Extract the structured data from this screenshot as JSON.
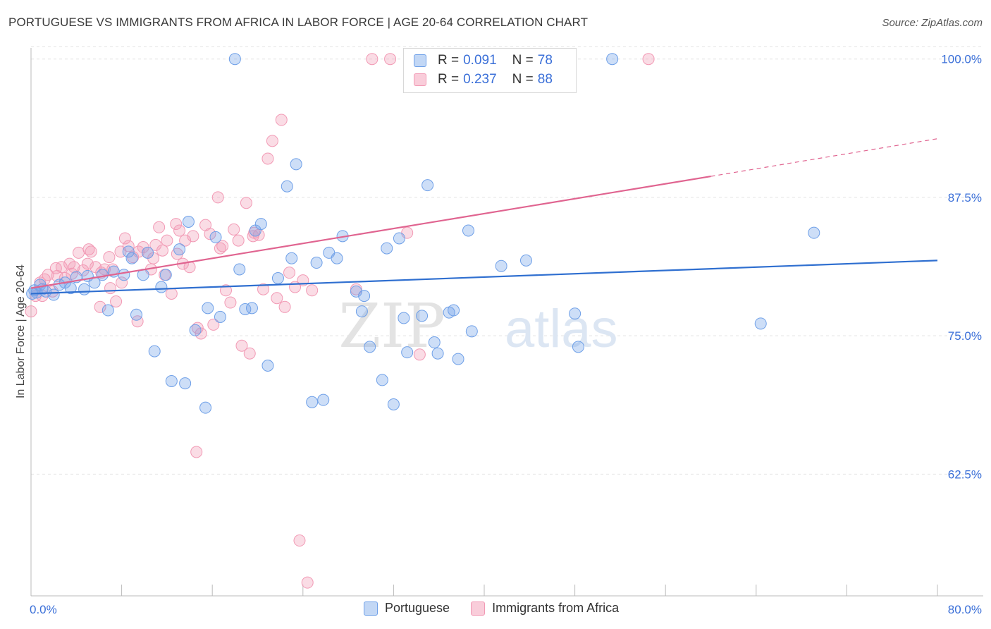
{
  "title": "PORTUGUESE VS IMMIGRANTS FROM AFRICA IN LABOR FORCE | AGE 20-64 CORRELATION CHART",
  "source": "Source: ZipAtlas.com",
  "watermark": {
    "zip": "ZIP",
    "atlas": "atlas"
  },
  "legend": {
    "rows": [
      {
        "r_label": "R =",
        "r_value": "0.091",
        "n_label": "N =",
        "n_value": "78"
      },
      {
        "r_label": "R =",
        "r_value": "0.237",
        "n_label": "N =",
        "n_value": "88"
      }
    ]
  },
  "chart_data": {
    "type": "scatter",
    "title": "PORTUGUESE VS IMMIGRANTS FROM AFRICA IN LABOR FORCE | AGE 20-64 CORRELATION CHART",
    "xlabel": "",
    "ylabel": "In Labor Force | Age 20-64",
    "xlim": [
      0,
      80
    ],
    "ylim": [
      51.5,
      101
    ],
    "x_tick_labels": [
      "0.0%",
      "80.0%"
    ],
    "y_ticks": [
      62.5,
      75.0,
      87.5,
      100.0
    ],
    "y_tick_labels": [
      "62.5%",
      "75.0%",
      "87.5%",
      "100.0%"
    ],
    "grid": true,
    "legend_position": "top-center",
    "colors": {
      "portuguese": "#6fa0e8",
      "portuguese_line": "#2f6fd0",
      "africa": "#f29ab5",
      "africa_line": "#e06490",
      "tick_label": "#3a6fd8"
    },
    "series": [
      {
        "name": "Portuguese",
        "r": 0.091,
        "n": 78,
        "trend": {
          "x": [
            0,
            80
          ],
          "y": [
            78.8,
            81.8
          ]
        },
        "points": [
          [
            0.3,
            79.1
          ],
          [
            0.5,
            78.9
          ],
          [
            0.8,
            79.6
          ],
          [
            1.0,
            79.2
          ],
          [
            1.3,
            79.0
          ],
          [
            2.0,
            78.7
          ],
          [
            2.5,
            79.6
          ],
          [
            3.0,
            79.8
          ],
          [
            3.5,
            79.3
          ],
          [
            4.0,
            80.3
          ],
          [
            4.7,
            79.2
          ],
          [
            5.0,
            80.4
          ],
          [
            5.6,
            79.8
          ],
          [
            6.3,
            80.5
          ],
          [
            6.8,
            77.3
          ],
          [
            7.3,
            80.8
          ],
          [
            8.2,
            80.5
          ],
          [
            8.6,
            82.6
          ],
          [
            8.9,
            82.0
          ],
          [
            9.3,
            76.9
          ],
          [
            9.9,
            80.5
          ],
          [
            10.3,
            82.5
          ],
          [
            10.9,
            73.6
          ],
          [
            11.5,
            79.4
          ],
          [
            11.9,
            80.5
          ],
          [
            12.4,
            70.9
          ],
          [
            13.1,
            82.8
          ],
          [
            13.6,
            70.7
          ],
          [
            13.9,
            85.3
          ],
          [
            14.5,
            75.5
          ],
          [
            15.4,
            68.5
          ],
          [
            15.6,
            77.5
          ],
          [
            16.3,
            83.9
          ],
          [
            16.7,
            76.7
          ],
          [
            18.0,
            100.0
          ],
          [
            18.4,
            81.0
          ],
          [
            18.9,
            77.4
          ],
          [
            19.5,
            77.5
          ],
          [
            19.8,
            84.5
          ],
          [
            20.3,
            85.1
          ],
          [
            20.9,
            72.3
          ],
          [
            21.8,
            80.2
          ],
          [
            22.6,
            88.5
          ],
          [
            23.0,
            82.0
          ],
          [
            23.4,
            90.5
          ],
          [
            24.8,
            69.0
          ],
          [
            25.2,
            81.6
          ],
          [
            25.8,
            69.2
          ],
          [
            26.3,
            82.5
          ],
          [
            27.0,
            82.0
          ],
          [
            27.5,
            84.0
          ],
          [
            28.7,
            79.0
          ],
          [
            29.2,
            77.2
          ],
          [
            29.4,
            78.6
          ],
          [
            29.9,
            74.0
          ],
          [
            31.0,
            71.0
          ],
          [
            31.4,
            82.9
          ],
          [
            32.0,
            68.8
          ],
          [
            32.5,
            83.8
          ],
          [
            32.9,
            76.6
          ],
          [
            33.2,
            73.5
          ],
          [
            34.5,
            76.8
          ],
          [
            35.0,
            88.6
          ],
          [
            35.6,
            74.4
          ],
          [
            35.9,
            73.4
          ],
          [
            36.9,
            77.1
          ],
          [
            37.3,
            77.3
          ],
          [
            37.7,
            72.9
          ],
          [
            38.6,
            84.5
          ],
          [
            38.9,
            75.4
          ],
          [
            41.5,
            81.3
          ],
          [
            43.7,
            81.8
          ],
          [
            48.0,
            77.0
          ],
          [
            48.3,
            74.0
          ],
          [
            51.3,
            100.0
          ],
          [
            69.1,
            84.3
          ],
          [
            64.4,
            76.1
          ],
          [
            0.1,
            78.8
          ]
        ]
      },
      {
        "name": "Immigrants from Africa",
        "r": 0.237,
        "n": 88,
        "trend": {
          "x": [
            0,
            60
          ],
          "y": [
            79.3,
            89.4
          ]
        },
        "trend_dashed": {
          "x": [
            60,
            80
          ],
          "y": [
            89.4,
            92.8
          ]
        },
        "points": [
          [
            0.0,
            77.2
          ],
          [
            0.4,
            78.6
          ],
          [
            0.8,
            79.8
          ],
          [
            1.2,
            80.1
          ],
          [
            1.5,
            80.5
          ],
          [
            1.9,
            79.0
          ],
          [
            2.3,
            80.4
          ],
          [
            2.7,
            81.2
          ],
          [
            3.0,
            80.2
          ],
          [
            3.4,
            81.5
          ],
          [
            3.8,
            81.2
          ],
          [
            4.2,
            82.5
          ],
          [
            4.6,
            80.9
          ],
          [
            5.0,
            81.5
          ],
          [
            5.3,
            82.6
          ],
          [
            5.7,
            81.2
          ],
          [
            6.1,
            77.6
          ],
          [
            6.5,
            81.0
          ],
          [
            6.9,
            82.1
          ],
          [
            7.2,
            81.0
          ],
          [
            7.5,
            78.1
          ],
          [
            7.9,
            82.6
          ],
          [
            8.3,
            83.8
          ],
          [
            8.6,
            83.1
          ],
          [
            9.0,
            82.1
          ],
          [
            9.5,
            82.6
          ],
          [
            9.9,
            83.0
          ],
          [
            10.3,
            82.5
          ],
          [
            10.6,
            81.0
          ],
          [
            11.0,
            83.2
          ],
          [
            11.3,
            84.8
          ],
          [
            11.6,
            82.7
          ],
          [
            12.0,
            83.6
          ],
          [
            12.4,
            78.8
          ],
          [
            12.8,
            85.1
          ],
          [
            13.1,
            84.5
          ],
          [
            13.6,
            83.6
          ],
          [
            14.0,
            81.2
          ],
          [
            14.3,
            84.0
          ],
          [
            14.7,
            75.7
          ],
          [
            15.0,
            75.2
          ],
          [
            15.4,
            85.0
          ],
          [
            15.8,
            84.2
          ],
          [
            16.1,
            76.0
          ],
          [
            16.5,
            87.5
          ],
          [
            16.9,
            83.1
          ],
          [
            17.2,
            79.1
          ],
          [
            17.6,
            78.0
          ],
          [
            17.9,
            84.6
          ],
          [
            18.3,
            83.6
          ],
          [
            18.6,
            74.1
          ],
          [
            19.0,
            87.0
          ],
          [
            19.3,
            73.4
          ],
          [
            19.7,
            84.3
          ],
          [
            20.1,
            84.1
          ],
          [
            20.5,
            79.2
          ],
          [
            20.9,
            91.0
          ],
          [
            21.3,
            92.6
          ],
          [
            21.7,
            78.4
          ],
          [
            22.1,
            94.5
          ],
          [
            22.4,
            77.6
          ],
          [
            22.8,
            80.7
          ],
          [
            23.3,
            79.4
          ],
          [
            23.7,
            56.5
          ],
          [
            24.0,
            80.0
          ],
          [
            24.4,
            52.7
          ],
          [
            24.8,
            79.1
          ],
          [
            28.7,
            79.2
          ],
          [
            30.1,
            100.0
          ],
          [
            31.7,
            100.0
          ],
          [
            33.2,
            84.3
          ],
          [
            34.3,
            73.3
          ],
          [
            54.5,
            100.0
          ],
          [
            14.6,
            64.5
          ],
          [
            6.2,
            80.7
          ],
          [
            7.0,
            79.3
          ],
          [
            9.4,
            76.3
          ],
          [
            12.9,
            82.4
          ],
          [
            16.7,
            82.9
          ],
          [
            19.6,
            84.0
          ],
          [
            3.6,
            80.6
          ],
          [
            2.2,
            81.1
          ],
          [
            1.0,
            78.6
          ],
          [
            5.1,
            82.8
          ],
          [
            8.0,
            79.8
          ],
          [
            10.8,
            82.0
          ],
          [
            13.4,
            81.5
          ],
          [
            11.8,
            80.5
          ]
        ]
      }
    ]
  }
}
